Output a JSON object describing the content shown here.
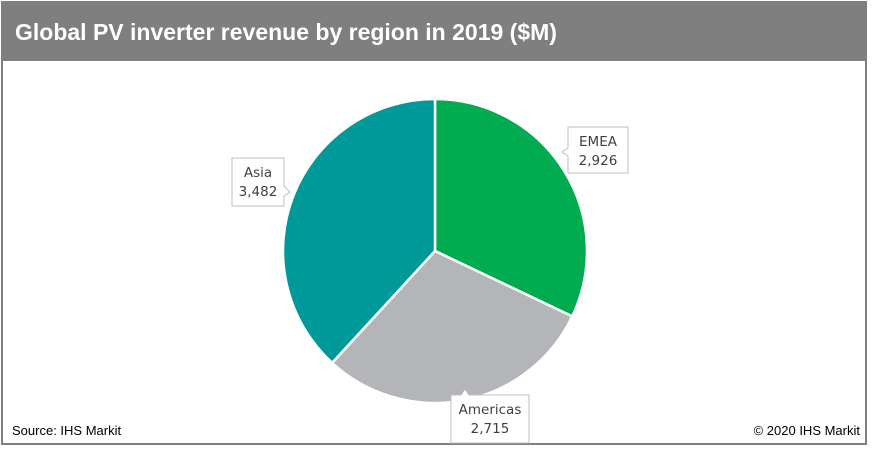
{
  "chart_data": {
    "type": "pie",
    "title": "Global PV inverter revenue by region in 2019 ($M)",
    "slices": [
      {
        "label": "EMEA",
        "value": 2926,
        "display": "2,926",
        "color": "#00ac4f"
      },
      {
        "label": "Americas",
        "value": 2715,
        "display": "2,715",
        "color": "#b3b5b8"
      },
      {
        "label": "Asia",
        "value": 3482,
        "display": "3,482",
        "color": "#009999"
      }
    ],
    "start_angle_deg": 0,
    "direction": "clockwise"
  },
  "footer": {
    "source": "Source: IHS Markit",
    "copyright": "© 2020 IHS Markit"
  }
}
